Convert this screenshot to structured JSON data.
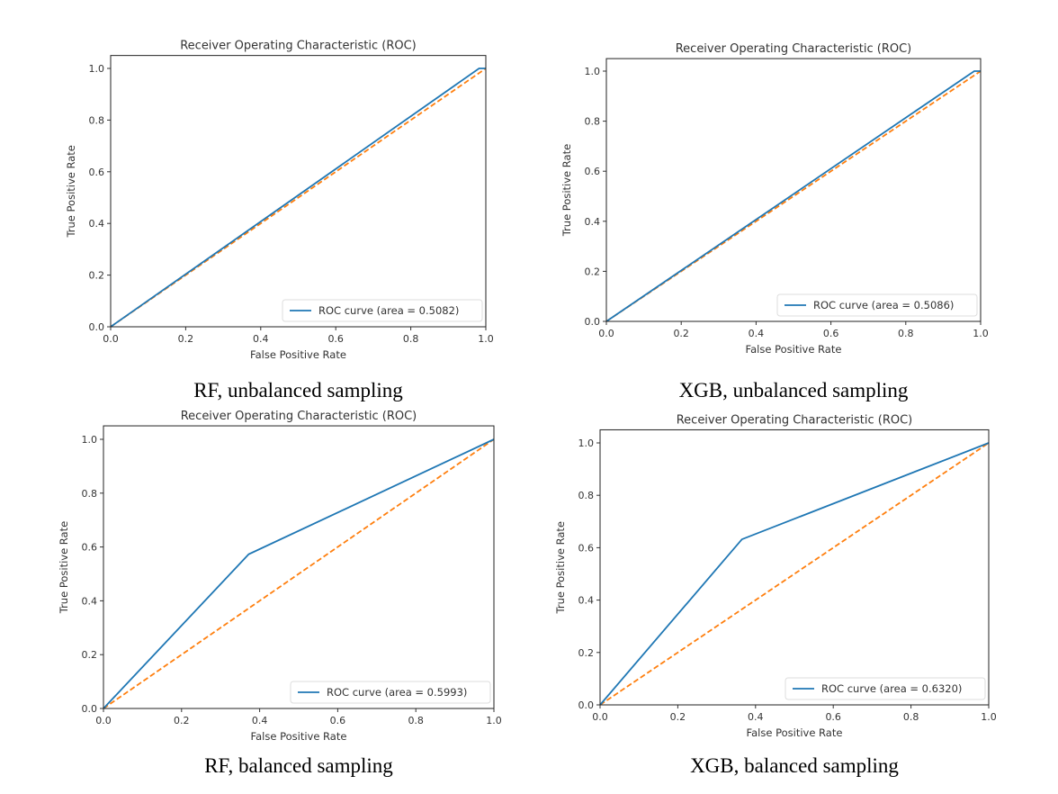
{
  "chart_data": [
    {
      "type": "line",
      "title": "Receiver Operating Characteristic (ROC)",
      "xlabel": "False Positive Rate",
      "ylabel": "True Positive Rate",
      "xlim": [
        0,
        1
      ],
      "ylim": [
        0,
        1.05
      ],
      "xticks": [
        "0.0",
        "0.2",
        "0.4",
        "0.6",
        "0.8",
        "1.0"
      ],
      "yticks": [
        "0.0",
        "0.2",
        "0.4",
        "0.6",
        "0.8",
        "1.0"
      ],
      "legend_position": "lower-right",
      "caption": "RF, unbalanced sampling",
      "series": [
        {
          "name": "ROC curve (area = 0.5082)",
          "color": "#1f77b4",
          "style": "solid",
          "x": [
            0,
            0.982,
            1.0
          ],
          "y": [
            0,
            1.0,
            1.0
          ]
        },
        {
          "name": "chance",
          "color": "#ff7f0e",
          "style": "dashed",
          "x": [
            0,
            1
          ],
          "y": [
            0,
            1
          ]
        }
      ]
    },
    {
      "type": "line",
      "title": "Receiver Operating Characteristic (ROC)",
      "xlabel": "False Positive Rate",
      "ylabel": "True Positive Rate",
      "xlim": [
        0,
        1
      ],
      "ylim": [
        0,
        1.05
      ],
      "xticks": [
        "0.0",
        "0.2",
        "0.4",
        "0.6",
        "0.8",
        "1.0"
      ],
      "yticks": [
        "0.0",
        "0.2",
        "0.4",
        "0.6",
        "0.8",
        "1.0"
      ],
      "legend_position": "lower-right",
      "caption": "XGB, unbalanced sampling",
      "series": [
        {
          "name": "ROC curve (area = 0.5086)",
          "color": "#1f77b4",
          "style": "solid",
          "x": [
            0,
            0.983,
            1.0
          ],
          "y": [
            0,
            1.0,
            1.0
          ]
        },
        {
          "name": "chance",
          "color": "#ff7f0e",
          "style": "dashed",
          "x": [
            0,
            1
          ],
          "y": [
            0,
            1
          ]
        }
      ]
    },
    {
      "type": "line",
      "title": "Receiver Operating Characteristic (ROC)",
      "xlabel": "False Positive Rate",
      "ylabel": "True Positive Rate",
      "xlim": [
        0,
        1
      ],
      "ylim": [
        0,
        1.05
      ],
      "xticks": [
        "0.0",
        "0.2",
        "0.4",
        "0.6",
        "0.8",
        "1.0"
      ],
      "yticks": [
        "0.0",
        "0.2",
        "0.4",
        "0.6",
        "0.8",
        "1.0"
      ],
      "legend_position": "lower-right",
      "caption": "RF, balanced sampling",
      "series": [
        {
          "name": "ROC curve (area = 0.5993)",
          "color": "#1f77b4",
          "style": "solid",
          "x": [
            0,
            0.372,
            1.0
          ],
          "y": [
            0,
            0.573,
            1.0
          ]
        },
        {
          "name": "chance",
          "color": "#ff7f0e",
          "style": "dashed",
          "x": [
            0,
            1
          ],
          "y": [
            0,
            1
          ]
        }
      ]
    },
    {
      "type": "line",
      "title": "Receiver Operating Characteristic (ROC)",
      "xlabel": "False Positive Rate",
      "ylabel": "True Positive Rate",
      "xlim": [
        0,
        1
      ],
      "ylim": [
        0,
        1.05
      ],
      "xticks": [
        "0.0",
        "0.2",
        "0.4",
        "0.6",
        "0.8",
        "1.0"
      ],
      "yticks": [
        "0.0",
        "0.2",
        "0.4",
        "0.6",
        "0.8",
        "1.0"
      ],
      "legend_position": "lower-right",
      "caption": "XGB, balanced sampling",
      "series": [
        {
          "name": "ROC curve (area = 0.6320)",
          "color": "#1f77b4",
          "style": "solid",
          "x": [
            0,
            0.365,
            1.0
          ],
          "y": [
            0,
            0.632,
            1.0
          ]
        },
        {
          "name": "chance",
          "color": "#ff7f0e",
          "style": "dashed",
          "x": [
            0,
            1
          ],
          "y": [
            0,
            1
          ]
        }
      ]
    }
  ]
}
